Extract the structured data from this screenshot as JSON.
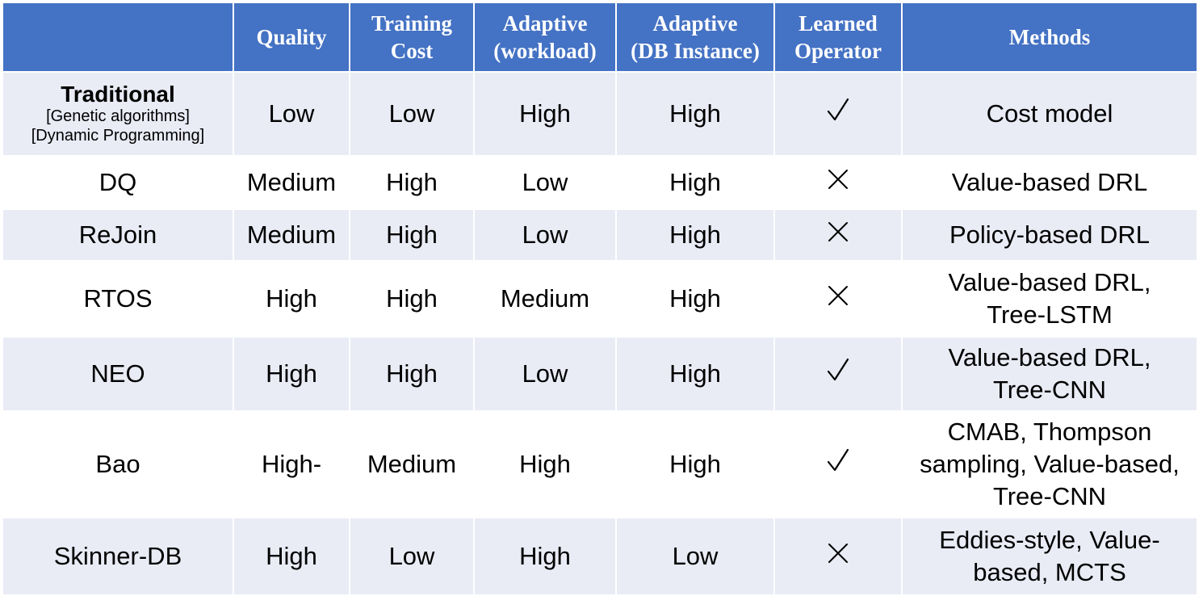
{
  "headers": {
    "approach": "",
    "quality": "Quality",
    "training_cost": "Training\nCost",
    "adaptive_workload": "Adaptive\n(workload)",
    "adaptive_db": "Adaptive\n(DB Instance)",
    "learned_operator": "Learned\nOperator",
    "methods": "Methods"
  },
  "rows": [
    {
      "approach": "Traditional",
      "approach_sub": [
        "[Genetic algorithms]",
        "[Dynamic Programming]"
      ],
      "quality": "Low",
      "training_cost": "Low",
      "adaptive_workload": "High",
      "adaptive_db": "High",
      "learned_operator": "check-icon",
      "methods": [
        "Cost model"
      ]
    },
    {
      "approach": "DQ",
      "quality": "Medium",
      "training_cost": "High",
      "adaptive_workload": "Low",
      "adaptive_db": "High",
      "learned_operator": "cross-icon",
      "methods": [
        "Value-based DRL"
      ]
    },
    {
      "approach": "ReJoin",
      "quality": "Medium",
      "training_cost": "High",
      "adaptive_workload": "Low",
      "adaptive_db": "High",
      "learned_operator": "cross-icon",
      "methods": [
        "Policy-based DRL"
      ]
    },
    {
      "approach": "RTOS",
      "quality": "High",
      "training_cost": "High",
      "adaptive_workload": "Medium",
      "adaptive_db": "High",
      "learned_operator": "cross-icon",
      "methods": [
        "Value-based DRL,",
        "Tree-LSTM"
      ]
    },
    {
      "approach": "NEO",
      "quality": "High",
      "training_cost": "High",
      "adaptive_workload": "Low",
      "adaptive_db": "High",
      "learned_operator": "check-icon",
      "methods": [
        "Value-based DRL,",
        "Tree-CNN"
      ]
    },
    {
      "approach": "Bao",
      "quality": "High-",
      "training_cost": "Medium",
      "adaptive_workload": "High",
      "adaptive_db": "High",
      "learned_operator": "check-icon",
      "methods": [
        "CMAB, Thompson",
        "sampling, Value-based,",
        "Tree-CNN"
      ]
    },
    {
      "approach": "Skinner-DB",
      "quality": "High",
      "training_cost": "Low",
      "adaptive_workload": "High",
      "adaptive_db": "Low",
      "learned_operator": "cross-icon",
      "methods": [
        "Eddies-style, Value-",
        "based, MCTS"
      ]
    }
  ],
  "colors": {
    "header_bg": "#4472c4",
    "header_text": "#ffffff",
    "row_band": "#e9ebf5",
    "row_plain": "#ffffff"
  }
}
